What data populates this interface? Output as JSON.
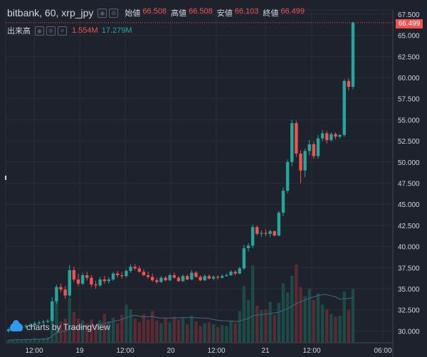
{
  "header": {
    "symbol": "bitbank, 60, xrp_jpy",
    "ohlc": [
      {
        "key": "始値",
        "value": "66.508"
      },
      {
        "key": "高値",
        "value": "66.508"
      },
      {
        "key": "安値",
        "value": "66.103"
      },
      {
        "key": "終値",
        "value": "66.499"
      }
    ]
  },
  "volume_legend": {
    "label": "出来高",
    "value1": "1.554M",
    "value2": "17.279M"
  },
  "watermark": "charts by TradingView",
  "colors": {
    "up": "#26a69a",
    "down": "#ef5350",
    "bg": "#1e222d",
    "grid": "#2a2e39",
    "text": "#d1d4dc"
  },
  "chart_data": {
    "type": "candlestick",
    "ylim": [
      28.6,
      68.0
    ],
    "y_ticks": [
      30,
      32.5,
      35,
      37.5,
      40,
      42.5,
      45,
      47.5,
      50,
      52.5,
      55,
      57.5,
      60,
      62.5,
      65,
      67.5
    ],
    "y_tick_labels": [
      "30.000",
      "32.500",
      "35.000",
      "37.500",
      "40.000",
      "42.500",
      "45.000",
      "47.500",
      "50.000",
      "52.500",
      "55.000",
      "57.500",
      "60.000",
      "62.500",
      "65.000",
      "67.500"
    ],
    "x_labels": [
      "12:00",
      "19",
      "12:00",
      "20",
      "12:00",
      "21",
      "12:00",
      "06:00"
    ],
    "last_price": "66.499",
    "candles": [
      [
        30.0,
        30.4,
        29.8,
        30.2
      ],
      [
        30.2,
        30.5,
        30.0,
        30.3
      ],
      [
        30.3,
        30.6,
        30.1,
        30.4
      ],
      [
        30.4,
        30.7,
        30.2,
        30.5
      ],
      [
        30.5,
        30.8,
        30.3,
        30.6
      ],
      [
        30.6,
        30.9,
        30.4,
        30.7
      ],
      [
        30.7,
        31.1,
        30.5,
        30.9
      ],
      [
        30.9,
        31.2,
        30.7,
        31.0
      ],
      [
        31.0,
        31.3,
        30.8,
        31.1
      ],
      [
        31.1,
        31.4,
        30.9,
        31.2
      ],
      [
        31.2,
        34.0,
        31.0,
        33.5
      ],
      [
        33.5,
        35.5,
        33.2,
        35.2
      ],
      [
        35.2,
        35.6,
        34.6,
        34.9
      ],
      [
        34.9,
        35.3,
        33.8,
        34.2
      ],
      [
        34.2,
        37.8,
        34.0,
        37.2
      ],
      [
        37.2,
        37.6,
        35.8,
        36.1
      ],
      [
        36.1,
        36.8,
        35.3,
        35.6
      ],
      [
        35.6,
        36.9,
        35.4,
        36.6
      ],
      [
        36.6,
        37.0,
        36.0,
        36.3
      ],
      [
        36.3,
        36.6,
        35.2,
        35.5
      ],
      [
        35.5,
        35.9,
        35.0,
        35.4
      ],
      [
        35.4,
        36.4,
        35.2,
        36.1
      ],
      [
        36.1,
        36.5,
        35.6,
        35.9
      ],
      [
        35.9,
        36.4,
        35.6,
        36.1
      ],
      [
        36.1,
        37.0,
        35.9,
        36.8
      ],
      [
        36.8,
        37.1,
        36.3,
        36.6
      ],
      [
        36.6,
        37.0,
        36.2,
        36.5
      ],
      [
        36.5,
        37.3,
        36.3,
        37.1
      ],
      [
        37.1,
        37.9,
        36.9,
        37.6
      ],
      [
        37.6,
        37.9,
        37.2,
        37.4
      ],
      [
        37.4,
        37.7,
        36.9,
        37.0
      ],
      [
        37.0,
        37.3,
        36.5,
        36.6
      ],
      [
        36.6,
        37.0,
        36.2,
        36.4
      ],
      [
        36.4,
        36.8,
        35.8,
        36.0
      ],
      [
        36.0,
        36.3,
        35.6,
        35.8
      ],
      [
        35.8,
        36.5,
        35.7,
        36.3
      ],
      [
        36.3,
        36.5,
        35.9,
        36.0
      ],
      [
        36.0,
        36.8,
        35.9,
        36.6
      ],
      [
        36.6,
        36.9,
        36.2,
        36.3
      ],
      [
        36.3,
        36.5,
        35.8,
        35.9
      ],
      [
        35.9,
        36.7,
        35.8,
        36.5
      ],
      [
        36.5,
        36.7,
        36.0,
        36.1
      ],
      [
        36.1,
        37.2,
        36.0,
        36.9
      ],
      [
        36.9,
        37.1,
        36.3,
        36.4
      ],
      [
        36.4,
        36.6,
        35.9,
        36.0
      ],
      [
        36.0,
        36.7,
        35.9,
        36.5
      ],
      [
        36.5,
        36.7,
        36.1,
        36.2
      ],
      [
        36.2,
        36.6,
        36.0,
        36.4
      ],
      [
        36.4,
        36.6,
        36.1,
        36.3
      ],
      [
        36.3,
        36.7,
        36.2,
        36.5
      ],
      [
        36.5,
        36.8,
        36.4,
        36.6
      ],
      [
        36.6,
        37.2,
        36.5,
        37.0
      ],
      [
        37.0,
        37.2,
        36.6,
        36.8
      ],
      [
        36.8,
        37.6,
        36.7,
        37.4
      ],
      [
        37.4,
        40.2,
        37.2,
        39.8
      ],
      [
        39.8,
        40.4,
        39.4,
        40.1
      ],
      [
        40.1,
        42.6,
        39.8,
        42.3
      ],
      [
        42.3,
        42.5,
        41.3,
        41.5
      ],
      [
        41.5,
        41.9,
        41.1,
        41.6
      ],
      [
        41.6,
        42.0,
        41.2,
        41.5
      ],
      [
        41.5,
        42.0,
        41.1,
        41.8
      ],
      [
        41.8,
        41.9,
        41.2,
        41.3
      ],
      [
        41.3,
        44.2,
        41.2,
        44.0
      ],
      [
        44.0,
        47.0,
        43.6,
        46.6
      ],
      [
        46.6,
        50.3,
        46.3,
        50.0
      ],
      [
        50.0,
        55.0,
        49.5,
        54.6
      ],
      [
        54.6,
        54.9,
        50.6,
        51.0
      ],
      [
        51.0,
        51.4,
        47.5,
        49.0
      ],
      [
        49.0,
        51.6,
        48.2,
        51.3
      ],
      [
        51.3,
        52.6,
        50.8,
        52.1
      ],
      [
        52.1,
        52.4,
        50.4,
        50.7
      ],
      [
        50.7,
        53.2,
        50.4,
        52.8
      ],
      [
        52.8,
        53.8,
        52.5,
        53.4
      ],
      [
        53.4,
        53.7,
        52.2,
        52.6
      ],
      [
        52.6,
        53.5,
        52.4,
        53.3
      ],
      [
        53.3,
        53.5,
        52.7,
        53.0
      ],
      [
        53.0,
        53.3,
        52.8,
        53.2
      ],
      [
        53.2,
        59.8,
        53.0,
        59.6
      ],
      [
        59.6,
        59.9,
        58.5,
        58.9
      ],
      [
        58.9,
        66.6,
        58.6,
        66.5
      ]
    ],
    "volumes": [
      0.3,
      0.3,
      0.4,
      0.3,
      0.4,
      0.4,
      0.5,
      0.4,
      0.5,
      0.6,
      4.0,
      4.6,
      2.3,
      2.6,
      4.8,
      3.3,
      2.6,
      2.4,
      2.1,
      2.5,
      1.8,
      2.4,
      3.1,
      2.3,
      2.7,
      2.1,
      3.0,
      4.1,
      3.6,
      2.6,
      2.2,
      3.1,
      2.5,
      3.4,
      2.4,
      2.1,
      2.7,
      2.2,
      2.8,
      2.5,
      2.7,
      2.0,
      2.9,
      2.3,
      1.8,
      2.1,
      2.2,
      2.0,
      1.7,
      1.9,
      1.8,
      2.4,
      2.1,
      3.4,
      6.1,
      4.6,
      8.3,
      4.0,
      3.5,
      3.6,
      4.4,
      3.0,
      4.3,
      6.4,
      5.4,
      7.2,
      8.4,
      6.0,
      5.0,
      5.8,
      4.6,
      5.3,
      4.1,
      3.6,
      3.1,
      2.8,
      2.9,
      5.5,
      3.5,
      5.8
    ]
  }
}
